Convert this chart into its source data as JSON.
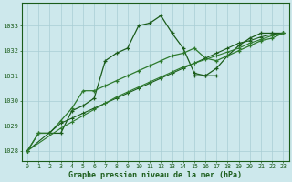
{
  "bg_color": "#cde8ec",
  "grid_color": "#a8cdd4",
  "line_color_dark": "#1a5c1a",
  "line_color_mid": "#2d7a2d",
  "marker": "+",
  "xlabel": "Graphe pression niveau de la mer (hPa)",
  "xlabel_color": "#1a5c1a",
  "ylim": [
    1027.6,
    1033.9
  ],
  "xlim": [
    -0.5,
    23.5
  ],
  "yticks": [
    1028,
    1029,
    1030,
    1031,
    1032,
    1033
  ],
  "xticks": [
    0,
    1,
    2,
    3,
    4,
    5,
    6,
    7,
    8,
    9,
    10,
    11,
    12,
    13,
    14,
    15,
    16,
    17,
    18,
    19,
    20,
    21,
    22,
    23
  ],
  "series1": [
    1028.0,
    1028.7,
    1028.7,
    1028.7,
    1029.6,
    1029.8,
    1030.1,
    1031.6,
    1031.9,
    1032.1,
    1033.0,
    1033.1,
    1033.4,
    1032.7,
    1032.1,
    1031.1,
    1031.0,
    1031.0,
    null,
    null,
    null,
    null,
    null,
    null
  ],
  "series2": [
    null,
    null,
    null,
    null,
    null,
    null,
    null,
    null,
    null,
    null,
    null,
    null,
    null,
    null,
    null,
    1031.0,
    1031.0,
    1031.3,
    1031.8,
    1032.2,
    1032.5,
    1032.7,
    1032.7,
    1032.7
  ],
  "series3": [
    1028.0,
    1028.7,
    1028.7,
    1029.2,
    1029.7,
    1030.4,
    1030.4,
    1030.6,
    1030.8,
    1031.0,
    1031.2,
    1031.4,
    1031.6,
    1031.8,
    1031.9,
    1032.1,
    1031.7,
    1031.6,
    1031.8,
    1032.0,
    1032.2,
    1032.4,
    1032.5,
    1032.7
  ],
  "series4_x": [
    0,
    3,
    4,
    5,
    6,
    7,
    8,
    9,
    10,
    11,
    12,
    13,
    14,
    15,
    16,
    17,
    18,
    19,
    20,
    21,
    22,
    23
  ],
  "series4_y": [
    1028.0,
    1029.1,
    1029.3,
    1029.5,
    1029.7,
    1029.9,
    1030.1,
    1030.3,
    1030.5,
    1030.7,
    1030.9,
    1031.1,
    1031.3,
    1031.5,
    1031.7,
    1031.9,
    1032.1,
    1032.3,
    1032.4,
    1032.55,
    1032.65,
    1032.7
  ],
  "series5_x": [
    0,
    3,
    4,
    5,
    6,
    7,
    8,
    9,
    10,
    11,
    12,
    13,
    14,
    15,
    16,
    17,
    18,
    19,
    20,
    21,
    22,
    23
  ],
  "series5_y": [
    1028.0,
    1028.9,
    1029.15,
    1029.4,
    1029.65,
    1029.9,
    1030.15,
    1030.35,
    1030.55,
    1030.75,
    1030.95,
    1031.15,
    1031.35,
    1031.5,
    1031.65,
    1031.8,
    1031.95,
    1032.1,
    1032.3,
    1032.45,
    1032.6,
    1032.7
  ]
}
